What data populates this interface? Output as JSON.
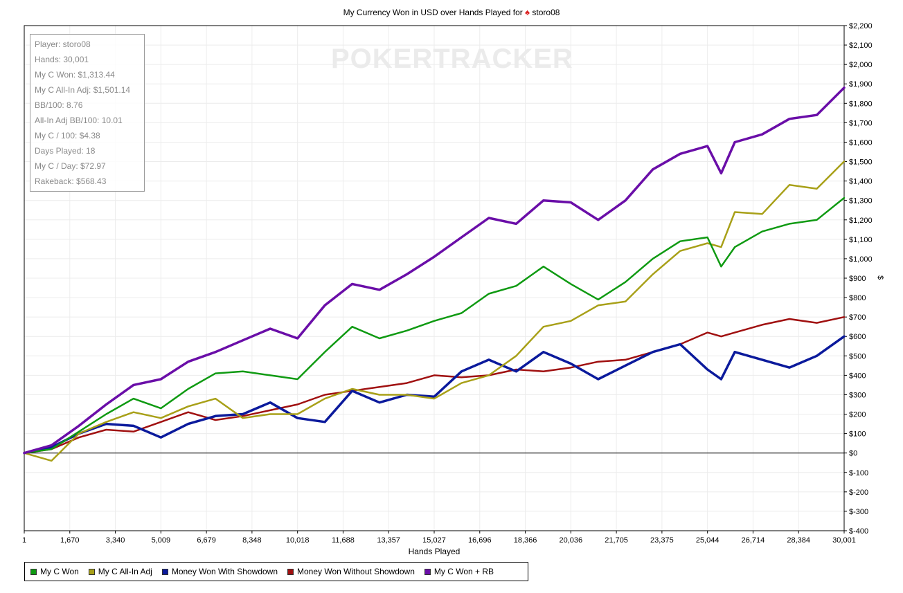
{
  "title": {
    "text_before": "My Currency Won in USD over Hands Played for",
    "player": "storo08",
    "spade_icon": "spade-icon"
  },
  "watermark": "POKERTRACKER",
  "stats": [
    "Player: storo08",
    "Hands: 30,001",
    "My C Won: $1,313.44",
    "My C All-In Adj: $1,501.14",
    "BB/100: 8.76",
    "All-In Adj BB/100: 10.01",
    "My C / 100: $4.38",
    "Days Played: 18",
    "My C / Day: $72.97",
    "Rakeback: $568.43"
  ],
  "chart_data": {
    "type": "line",
    "title": "My Currency Won in USD over Hands Played for storo08",
    "xlabel": "Hands Played",
    "ylabel": "$",
    "xlim": [
      1,
      30001
    ],
    "ylim": [
      -400,
      2200
    ],
    "grid": true,
    "legend_position": "bottom",
    "x_ticks": [
      "1",
      "1,670",
      "3,340",
      "5,009",
      "6,679",
      "8,348",
      "10,018",
      "11,688",
      "13,357",
      "15,027",
      "16,696",
      "18,366",
      "20,036",
      "21,705",
      "23,375",
      "25,044",
      "26,714",
      "28,384",
      "30,001"
    ],
    "y_ticks": [
      "$2,200",
      "$2,100",
      "$2,000",
      "$1,900",
      "$1,800",
      "$1,700",
      "$1,600",
      "$1,500",
      "$1,400",
      "$1,300",
      "$1,200",
      "$1,100",
      "$1,000",
      "$900",
      "$800",
      "$700",
      "$600",
      "$500",
      "$400",
      "$300",
      "$200",
      "$100",
      "$0",
      "$-100",
      "$-200",
      "$-300",
      "$-400"
    ],
    "x": [
      1,
      1000,
      2000,
      3000,
      4000,
      5000,
      6000,
      7000,
      8000,
      9000,
      10000,
      11000,
      12000,
      13000,
      14000,
      15000,
      16000,
      17000,
      18000,
      19000,
      20000,
      21000,
      22000,
      23000,
      24000,
      25000,
      25500,
      26000,
      27000,
      28000,
      29000,
      30001
    ],
    "series": [
      {
        "name": "My C Won",
        "color": "#0f9a12",
        "values": [
          0,
          20,
          110,
          200,
          280,
          230,
          330,
          410,
          420,
          400,
          380,
          520,
          650,
          590,
          630,
          680,
          720,
          820,
          860,
          960,
          870,
          790,
          880,
          1000,
          1090,
          1110,
          960,
          1060,
          1140,
          1180,
          1200,
          1313
        ]
      },
      {
        "name": "My C All-In Adj",
        "color": "#a8a018",
        "values": [
          0,
          -40,
          100,
          160,
          210,
          180,
          240,
          280,
          180,
          200,
          200,
          280,
          330,
          300,
          300,
          280,
          360,
          400,
          500,
          650,
          680,
          760,
          780,
          920,
          1040,
          1080,
          1060,
          1240,
          1230,
          1380,
          1360,
          1501
        ]
      },
      {
        "name": "Money Won With Showdown",
        "color": "#0b1a9c",
        "values": [
          0,
          30,
          100,
          150,
          140,
          80,
          150,
          190,
          200,
          260,
          180,
          160,
          320,
          260,
          300,
          290,
          420,
          480,
          420,
          520,
          460,
          380,
          450,
          520,
          560,
          430,
          380,
          520,
          480,
          440,
          500,
          600
        ]
      },
      {
        "name": "Money Won Without Showdown",
        "color": "#a01010",
        "values": [
          0,
          20,
          80,
          120,
          110,
          160,
          210,
          170,
          190,
          220,
          250,
          300,
          320,
          340,
          360,
          400,
          390,
          400,
          430,
          420,
          440,
          470,
          480,
          520,
          560,
          620,
          600,
          620,
          660,
          690,
          670,
          700
        ]
      },
      {
        "name": "My C Won + RB",
        "color": "#6a0ea8",
        "values": [
          0,
          40,
          140,
          250,
          350,
          380,
          470,
          520,
          580,
          640,
          590,
          760,
          870,
          840,
          920,
          1010,
          1110,
          1210,
          1180,
          1300,
          1290,
          1200,
          1300,
          1460,
          1540,
          1580,
          1440,
          1600,
          1640,
          1720,
          1740,
          1880
        ]
      }
    ]
  },
  "legend_items": [
    {
      "label": "My C Won",
      "color": "#0f9a12"
    },
    {
      "label": "My C All-In Adj",
      "color": "#a8a018"
    },
    {
      "label": "Money Won With Showdown",
      "color": "#0b1a9c"
    },
    {
      "label": "Money Won Without Showdown",
      "color": "#a01010"
    },
    {
      "label": "My C Won + RB",
      "color": "#6a0ea8"
    }
  ]
}
